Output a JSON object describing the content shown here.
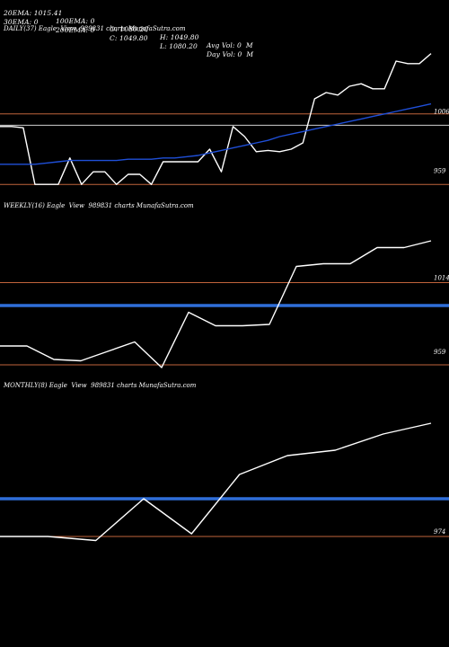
{
  "header": {
    "row1": [
      "20EMA: 1015.41",
      "100EMA: 0",
      "O: 1080.20",
      "H: 1049.80",
      "Avg Vol: 0  M"
    ],
    "row2": [
      "30EMA: 0",
      "200EMA: 0",
      "C: 1049.80",
      "L: 1080.20",
      "Day Vol: 0  M"
    ]
  },
  "chart_data": [
    {
      "type": "line",
      "title": "DAILY(37) Eagle  View  989831 charts MunafaSutra.com",
      "ylabel_ticks": [
        "1006",
        "959"
      ],
      "ylim": [
        940,
        1070
      ],
      "hlines": [
        {
          "value": 1008,
          "color": "#c0643c",
          "kind": "hline"
        },
        {
          "value": 999,
          "color": "#d0d0d0",
          "kind": "hline"
        },
        {
          "value": 952,
          "color": "#c0643c",
          "kind": "hline"
        }
      ],
      "series": [
        {
          "color": "#ffffff",
          "values": [
            998,
            998,
            997,
            952,
            952,
            952,
            973,
            952,
            962,
            962,
            952,
            960,
            960,
            952,
            970,
            970,
            970,
            970,
            980,
            962,
            998,
            990,
            978,
            979,
            978,
            980,
            985,
            1020,
            1025,
            1023,
            1030,
            1032,
            1028,
            1028,
            1050,
            1048,
            1048,
            1056
          ]
        },
        {
          "color": "#1f4fd8",
          "values": [
            968,
            968,
            968,
            968,
            969,
            970,
            971,
            971,
            971,
            971,
            971,
            972,
            972,
            972,
            973,
            973,
            974,
            975,
            977,
            979,
            981,
            983,
            985,
            987,
            990,
            992,
            994,
            996,
            998,
            1000,
            1002,
            1004,
            1006,
            1008,
            1010,
            1012,
            1014,
            1016
          ]
        }
      ]
    },
    {
      "type": "line",
      "title": "WEEKLY(16) Eagle  View  989831 charts MunafaSutra.com",
      "ylabel_ticks": [
        "1014",
        "959"
      ],
      "ylim": [
        945,
        1065
      ],
      "hlines": [
        {
          "value": 1014,
          "color": "#c0643c",
          "kind": "hline"
        },
        {
          "value": 997,
          "color": "#2f6ed8",
          "kind": "band"
        },
        {
          "value": 953,
          "color": "#c0643c",
          "kind": "hline"
        }
      ],
      "series": [
        {
          "color": "#ffffff",
          "values": [
            967,
            967,
            957,
            956,
            963,
            970,
            951,
            992,
            982,
            982,
            983,
            1026,
            1028,
            1028,
            1040,
            1040,
            1045
          ]
        }
      ]
    },
    {
      "type": "line",
      "title": "MONTHLY(8) Eagle  View  989831 charts MunafaSutra.com",
      "ylabel_ticks": [
        "974"
      ],
      "ylim": [
        960,
        1080
      ],
      "hlines": [
        {
          "value": 1002,
          "color": "#2f6ed8",
          "kind": "band"
        },
        {
          "value": 974,
          "color": "#c0643c",
          "kind": "hline"
        }
      ],
      "series": [
        {
          "color": "#ffffff",
          "values": [
            974,
            974,
            971,
            1002,
            976,
            1020,
            1034,
            1038,
            1050,
            1058
          ]
        }
      ]
    }
  ]
}
